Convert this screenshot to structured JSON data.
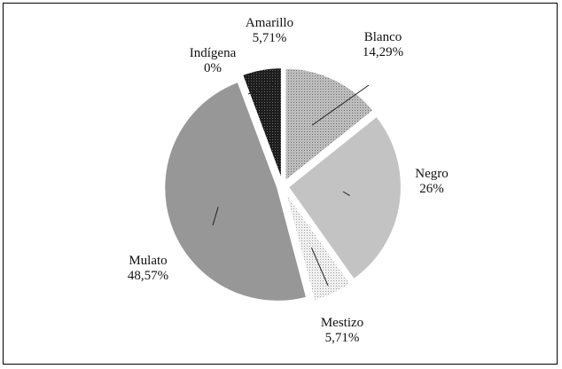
{
  "chart_data": {
    "type": "pie",
    "slices": [
      {
        "label": "Blanco",
        "value_text": "14,29%",
        "value": 14.29,
        "color": "#a7a7a7",
        "pattern": "dots"
      },
      {
        "label": "Negro",
        "value_text": "26%",
        "value": 26,
        "color": "#c3c3c3",
        "pattern": "plain"
      },
      {
        "label": "Mestizo",
        "value_text": "5,71%",
        "value": 5.71,
        "color": "#dcdcdc",
        "pattern": "dots"
      },
      {
        "label": "Mulato",
        "value_text": "48,57%",
        "value": 48.57,
        "color": "#979797",
        "pattern": "plain"
      },
      {
        "label": "Indígena",
        "value_text": "0%",
        "value": 0,
        "color": "#ffffff",
        "pattern": "plain"
      },
      {
        "label": "Amarillo",
        "value_text": "5,71%",
        "value": 5.71,
        "color": "#2a2a2a",
        "pattern": "dark"
      }
    ]
  }
}
